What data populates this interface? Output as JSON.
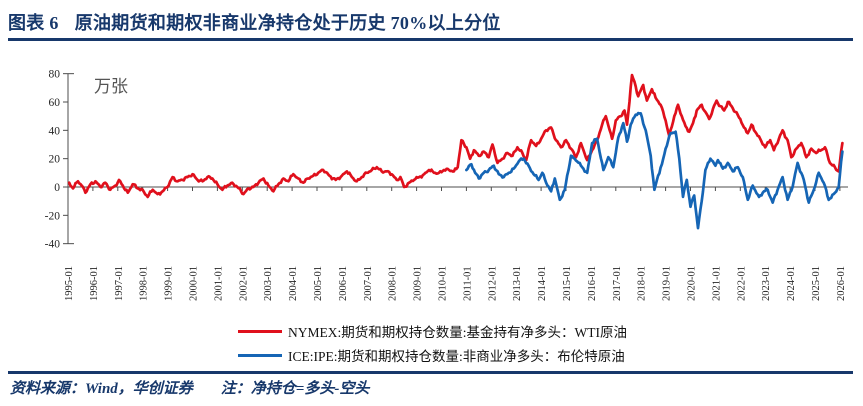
{
  "header": {
    "label": "图表 6",
    "title": "原油期货和期权非商业净持仓处于历史 70%以上分位"
  },
  "footer": {
    "source": "资料来源：Wind，华创证券",
    "note": "注：净持仓=多头-空头"
  },
  "colors": {
    "navy": "#17386B",
    "red_series": "#E0101C",
    "blue_series": "#1565B5",
    "axis": "#4D4D4D",
    "tick_text": "#262626",
    "unit_text": "#555555"
  },
  "chart_data": {
    "type": "line",
    "title": "原油期货和期权非商业净持仓处于历史 70%以上分位",
    "unit_label": "万张",
    "xlabel": "",
    "ylabel": "",
    "ylim": [
      -40,
      80
    ],
    "yticks": [
      80,
      60,
      40,
      20,
      0,
      -20,
      -40
    ],
    "grid": false,
    "legend_position": "bottom",
    "x_ticks": [
      "1995-01",
      "1996-01",
      "1997-01",
      "1998-01",
      "1999-01",
      "2000-01",
      "2001-01",
      "2002-01",
      "2003-01",
      "2004-01",
      "2005-01",
      "2006-01",
      "2007-01",
      "2008-01",
      "2009-01",
      "2010-01",
      "2011-01",
      "2012-01",
      "2013-01",
      "2014-01",
      "2015-01",
      "2016-01",
      "2017-01",
      "2018-01",
      "2019-01",
      "2020-01",
      "2021-01",
      "2022-01",
      "2023-01",
      "2024-01",
      "2025-01",
      "2026-01"
    ],
    "x_start_year": 1995,
    "x_end_year": 2026.3,
    "series": [
      {
        "name": "NYMEX:期货和期权持仓数量:基金持有净多头：WTI原油",
        "color": "#E0101C",
        "points": [
          [
            1995.05,
            3
          ],
          [
            1995.2,
            -1
          ],
          [
            1995.4,
            4
          ],
          [
            1995.55,
            1
          ],
          [
            1995.7,
            -4
          ],
          [
            1995.9,
            2
          ],
          [
            1996.1,
            4
          ],
          [
            1996.3,
            0
          ],
          [
            1996.5,
            3
          ],
          [
            1996.7,
            -2
          ],
          [
            1996.9,
            1
          ],
          [
            1997.05,
            5
          ],
          [
            1997.2,
            1
          ],
          [
            1997.4,
            -4
          ],
          [
            1997.6,
            2
          ],
          [
            1997.8,
            -1
          ],
          [
            1998.0,
            -2
          ],
          [
            1998.2,
            -7
          ],
          [
            1998.4,
            -2
          ],
          [
            1998.6,
            -5
          ],
          [
            1998.8,
            -3
          ],
          [
            1999.0,
            0
          ],
          [
            1999.2,
            7
          ],
          [
            1999.4,
            4
          ],
          [
            1999.6,
            5
          ],
          [
            1999.8,
            7
          ],
          [
            2000.0,
            9
          ],
          [
            2000.2,
            5
          ],
          [
            2000.4,
            4
          ],
          [
            2000.6,
            7
          ],
          [
            2000.8,
            6
          ],
          [
            2001.0,
            2
          ],
          [
            2001.2,
            -2
          ],
          [
            2001.4,
            1
          ],
          [
            2001.6,
            3
          ],
          [
            2001.8,
            0
          ],
          [
            2002.05,
            -5
          ],
          [
            2002.25,
            -1
          ],
          [
            2002.45,
            0
          ],
          [
            2002.65,
            3
          ],
          [
            2002.85,
            6
          ],
          [
            2003.05,
            1
          ],
          [
            2003.25,
            -3
          ],
          [
            2003.45,
            2
          ],
          [
            2003.65,
            6
          ],
          [
            2003.85,
            4
          ],
          [
            2004.05,
            9
          ],
          [
            2004.25,
            6
          ],
          [
            2004.45,
            3
          ],
          [
            2004.65,
            6
          ],
          [
            2004.85,
            8
          ],
          [
            2005.05,
            10
          ],
          [
            2005.25,
            12
          ],
          [
            2005.5,
            8
          ],
          [
            2005.75,
            5
          ],
          [
            2006.0,
            8
          ],
          [
            2006.2,
            11
          ],
          [
            2006.4,
            7
          ],
          [
            2006.6,
            4
          ],
          [
            2006.8,
            7
          ],
          [
            2007.0,
            10
          ],
          [
            2007.2,
            12
          ],
          [
            2007.4,
            14
          ],
          [
            2007.6,
            11
          ],
          [
            2007.8,
            11
          ],
          [
            2008.0,
            9
          ],
          [
            2008.2,
            5
          ],
          [
            2008.35,
            7
          ],
          [
            2008.5,
            0
          ],
          [
            2008.7,
            3
          ],
          [
            2008.9,
            5
          ],
          [
            2009.1,
            7
          ],
          [
            2009.3,
            9
          ],
          [
            2009.5,
            12
          ],
          [
            2009.7,
            10
          ],
          [
            2009.9,
            10
          ],
          [
            2010.1,
            12
          ],
          [
            2010.3,
            12
          ],
          [
            2010.5,
            11
          ],
          [
            2010.65,
            14
          ],
          [
            2010.8,
            33
          ],
          [
            2011.0,
            28
          ],
          [
            2011.15,
            20
          ],
          [
            2011.3,
            26
          ],
          [
            2011.5,
            22
          ],
          [
            2011.7,
            25
          ],
          [
            2011.9,
            21
          ],
          [
            2012.05,
            30
          ],
          [
            2012.25,
            17
          ],
          [
            2012.45,
            20
          ],
          [
            2012.65,
            24
          ],
          [
            2012.85,
            22
          ],
          [
            2013.05,
            28
          ],
          [
            2013.25,
            24
          ],
          [
            2013.4,
            19
          ],
          [
            2013.6,
            33
          ],
          [
            2013.8,
            29
          ],
          [
            2014.0,
            34
          ],
          [
            2014.2,
            40
          ],
          [
            2014.4,
            42
          ],
          [
            2014.6,
            33
          ],
          [
            2014.8,
            28
          ],
          [
            2015.0,
            33
          ],
          [
            2015.2,
            27
          ],
          [
            2015.4,
            21
          ],
          [
            2015.6,
            31
          ],
          [
            2015.85,
            19
          ],
          [
            2016.05,
            26
          ],
          [
            2016.25,
            33
          ],
          [
            2016.45,
            44
          ],
          [
            2016.6,
            50
          ],
          [
            2016.85,
            34
          ],
          [
            2017.0,
            47
          ],
          [
            2017.2,
            50
          ],
          [
            2017.35,
            54
          ],
          [
            2017.45,
            44
          ],
          [
            2017.65,
            79
          ],
          [
            2017.8,
            71
          ],
          [
            2017.9,
            64
          ],
          [
            2018.1,
            72
          ],
          [
            2018.25,
            61
          ],
          [
            2018.45,
            69
          ],
          [
            2018.6,
            63
          ],
          [
            2018.8,
            58
          ],
          [
            2019.0,
            47
          ],
          [
            2019.15,
            36
          ],
          [
            2019.35,
            50
          ],
          [
            2019.5,
            58
          ],
          [
            2019.65,
            50
          ],
          [
            2019.8,
            43
          ],
          [
            2019.95,
            39
          ],
          [
            2020.1,
            45
          ],
          [
            2020.25,
            54
          ],
          [
            2020.45,
            58
          ],
          [
            2020.6,
            53
          ],
          [
            2020.75,
            48
          ],
          [
            2020.9,
            55
          ],
          [
            2021.05,
            61
          ],
          [
            2021.2,
            57
          ],
          [
            2021.35,
            54
          ],
          [
            2021.5,
            60
          ],
          [
            2021.65,
            57
          ],
          [
            2021.8,
            53
          ],
          [
            2022.0,
            48
          ],
          [
            2022.15,
            42
          ],
          [
            2022.3,
            38
          ],
          [
            2022.45,
            44
          ],
          [
            2022.6,
            39
          ],
          [
            2022.8,
            34
          ],
          [
            2023.0,
            28
          ],
          [
            2023.2,
            33
          ],
          [
            2023.35,
            26
          ],
          [
            2023.55,
            34
          ],
          [
            2023.7,
            40
          ],
          [
            2023.9,
            33
          ],
          [
            2024.05,
            21
          ],
          [
            2024.25,
            27
          ],
          [
            2024.45,
            31
          ],
          [
            2024.65,
            21
          ],
          [
            2024.85,
            27
          ],
          [
            2025.05,
            24
          ],
          [
            2025.25,
            26
          ],
          [
            2025.4,
            28
          ],
          [
            2025.6,
            17
          ],
          [
            2025.8,
            14
          ],
          [
            2025.95,
            11
          ],
          [
            2026.1,
            31
          ]
        ]
      },
      {
        "name": "ICE:IPE:期货和期权持仓数量:非商业净多头：布伦特原油",
        "color": "#1565B5",
        "points": [
          [
            2011.0,
            12
          ],
          [
            2011.2,
            16
          ],
          [
            2011.35,
            10
          ],
          [
            2011.5,
            6
          ],
          [
            2011.7,
            10
          ],
          [
            2011.9,
            12
          ],
          [
            2012.1,
            15
          ],
          [
            2012.3,
            9
          ],
          [
            2012.5,
            7
          ],
          [
            2012.7,
            10
          ],
          [
            2012.9,
            13
          ],
          [
            2013.1,
            18
          ],
          [
            2013.3,
            20
          ],
          [
            2013.5,
            15
          ],
          [
            2013.7,
            9
          ],
          [
            2013.9,
            5
          ],
          [
            2014.05,
            10
          ],
          [
            2014.2,
            3
          ],
          [
            2014.4,
            -3
          ],
          [
            2014.55,
            6
          ],
          [
            2014.75,
            -9
          ],
          [
            2014.95,
            -2
          ],
          [
            2015.2,
            22
          ],
          [
            2015.45,
            18
          ],
          [
            2015.65,
            14
          ],
          [
            2015.85,
            10
          ],
          [
            2016.05,
            31
          ],
          [
            2016.25,
            34
          ],
          [
            2016.5,
            12
          ],
          [
            2016.7,
            21
          ],
          [
            2016.9,
            14
          ],
          [
            2017.1,
            35
          ],
          [
            2017.3,
            45
          ],
          [
            2017.45,
            32
          ],
          [
            2017.6,
            44
          ],
          [
            2017.8,
            51
          ],
          [
            2018.0,
            52
          ],
          [
            2018.2,
            40
          ],
          [
            2018.4,
            22
          ],
          [
            2018.55,
            -2
          ],
          [
            2018.7,
            8
          ],
          [
            2018.85,
            16
          ],
          [
            2019.0,
            27
          ],
          [
            2019.2,
            38
          ],
          [
            2019.4,
            39
          ],
          [
            2019.55,
            20
          ],
          [
            2019.7,
            -7
          ],
          [
            2019.85,
            5
          ],
          [
            2020.0,
            -14
          ],
          [
            2020.15,
            -6
          ],
          [
            2020.3,
            -29
          ],
          [
            2020.45,
            -10
          ],
          [
            2020.6,
            12
          ],
          [
            2020.8,
            20
          ],
          [
            2021.0,
            15
          ],
          [
            2021.1,
            19
          ],
          [
            2021.3,
            13
          ],
          [
            2021.5,
            17
          ],
          [
            2021.7,
            11
          ],
          [
            2021.9,
            14
          ],
          [
            2022.1,
            7
          ],
          [
            2022.3,
            -9
          ],
          [
            2022.5,
            1
          ],
          [
            2022.75,
            -7
          ],
          [
            2022.95,
            -3
          ],
          [
            2023.1,
            -2
          ],
          [
            2023.3,
            -11
          ],
          [
            2023.5,
            -2
          ],
          [
            2023.7,
            7
          ],
          [
            2023.9,
            -9
          ],
          [
            2024.1,
            0
          ],
          [
            2024.3,
            17
          ],
          [
            2024.55,
            5
          ],
          [
            2024.75,
            -11
          ],
          [
            2024.95,
            -2
          ],
          [
            2025.15,
            10
          ],
          [
            2025.35,
            3
          ],
          [
            2025.55,
            -9
          ],
          [
            2025.75,
            -5
          ],
          [
            2025.95,
            0
          ],
          [
            2026.1,
            25
          ]
        ]
      }
    ]
  }
}
